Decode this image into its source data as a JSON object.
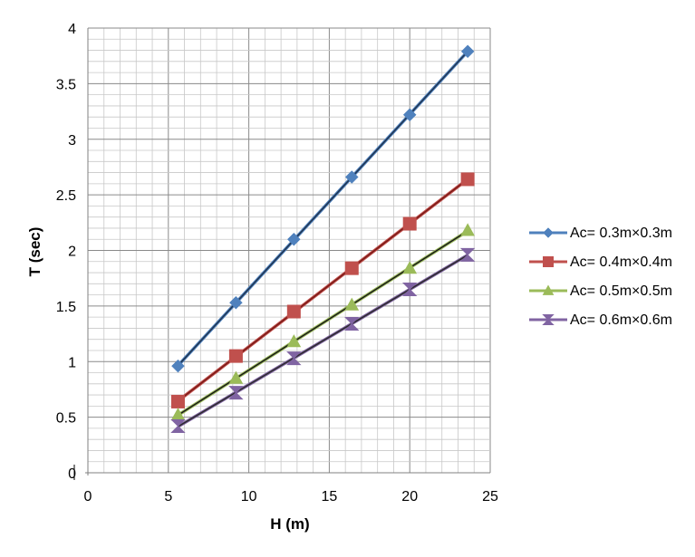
{
  "chart_data": {
    "type": "scatter",
    "xlabel": "H (m)",
    "ylabel": "T (sec)",
    "xlim": [
      0,
      25
    ],
    "ylim": [
      0,
      4
    ],
    "x_ticks": [
      "0",
      "5",
      "10",
      "15",
      "20",
      "25"
    ],
    "y_ticks": [
      "0",
      "0.5",
      "1",
      "1.5",
      "2",
      "2.5",
      "3",
      "3.5",
      "4"
    ],
    "grid": "major and minor",
    "legend_position": "right",
    "trendlines": true,
    "series": [
      {
        "name": "Ac= 0.3m×0.3m",
        "color": "#4F81BD",
        "marker": "diamond",
        "x": [
          5.6,
          9.2,
          12.8,
          16.4,
          20.0,
          23.6
        ],
        "y": [
          0.96,
          1.53,
          2.1,
          2.66,
          3.22,
          3.79
        ]
      },
      {
        "name": "Ac= 0.4m×0.4m",
        "color": "#C0504D",
        "marker": "square",
        "x": [
          5.6,
          9.2,
          12.8,
          16.4,
          20.0,
          23.6
        ],
        "y": [
          0.64,
          1.05,
          1.45,
          1.84,
          2.24,
          2.64
        ]
      },
      {
        "name": "Ac= 0.5m×0.5m",
        "color": "#9BBB59",
        "marker": "triangle",
        "x": [
          5.6,
          9.2,
          12.8,
          16.4,
          20.0,
          23.6
        ],
        "y": [
          0.52,
          0.85,
          1.18,
          1.51,
          1.84,
          2.18
        ]
      },
      {
        "name": "Ac= 0.6m×0.6m",
        "color": "#8064A2",
        "marker": "hourglass",
        "x": [
          5.6,
          9.2,
          12.8,
          16.4,
          20.0,
          23.6
        ],
        "y": [
          0.42,
          0.72,
          1.03,
          1.34,
          1.65,
          1.96
        ]
      }
    ]
  }
}
